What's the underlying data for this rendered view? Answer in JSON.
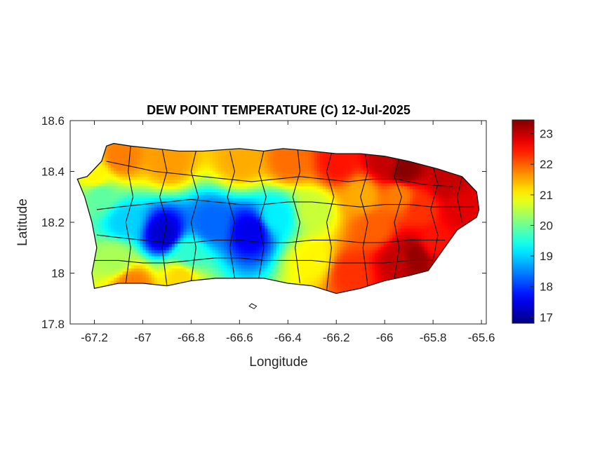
{
  "figure": {
    "title": "DEW POINT TEMPERATURE (C) 12-Jul-2025",
    "xlabel": "Longitude",
    "ylabel": "Latitude"
  },
  "chart_data": {
    "type": "heatmap",
    "title": "DEW POINT TEMPERATURE (C) 12-Jul-2025",
    "xlabel": "Longitude",
    "ylabel": "Latitude",
    "xlim": [
      -67.3,
      -65.58
    ],
    "ylim": [
      17.8,
      18.6
    ],
    "xticks": [
      -67.2,
      -67,
      -66.8,
      -66.6,
      -66.4,
      -66.2,
      -66,
      -65.8,
      -65.6
    ],
    "xtick_labels": [
      "-67.2",
      "-67",
      "-66.8",
      "-66.6",
      "-66.4",
      "-66.2",
      "-66",
      "-65.8",
      "-65.6"
    ],
    "yticks": [
      17.8,
      18,
      18.2,
      18.4,
      18.6
    ],
    "ytick_labels": [
      "17.8",
      "18",
      "18.2",
      "18.4",
      "18.6"
    ],
    "colorbar": {
      "colormap": "jet",
      "limits": [
        16.8,
        23.45
      ],
      "ticks": [
        17,
        18,
        19,
        20,
        21,
        22,
        23
      ],
      "tick_labels": [
        "17",
        "18",
        "19",
        "20",
        "21",
        "22",
        "23"
      ]
    },
    "colormap_colors": [
      "#00008f",
      "#0000ff",
      "#00ffff",
      "#ffff00",
      "#ff0000",
      "#800000"
    ],
    "grid": false,
    "field_anchors": [
      {
        "lon": -66.92,
        "lat": 18.15,
        "value": 17.3
      },
      {
        "lon": -66.56,
        "lat": 18.16,
        "value": 17.5
      },
      {
        "lon": -66.72,
        "lat": 18.19,
        "value": 18.3
      },
      {
        "lon": -67.08,
        "lat": 18.2,
        "value": 19.0
      },
      {
        "lon": -66.45,
        "lat": 18.22,
        "value": 19.2
      },
      {
        "lon": -66.82,
        "lat": 18.07,
        "value": 19.6
      },
      {
        "lon": -67.18,
        "lat": 18.3,
        "value": 19.9
      },
      {
        "lon": -67.12,
        "lat": 18.05,
        "value": 20.4
      },
      {
        "lon": -66.3,
        "lat": 18.24,
        "value": 20.6
      },
      {
        "lon": -66.3,
        "lat": 18.05,
        "value": 21.0
      },
      {
        "lon": -66.9,
        "lat": 18.44,
        "value": 21.6
      },
      {
        "lon": -67.1,
        "lat": 18.45,
        "value": 21.8
      },
      {
        "lon": -66.6,
        "lat": 18.44,
        "value": 21.5
      },
      {
        "lon": -66.4,
        "lat": 18.44,
        "value": 21.9
      },
      {
        "lon": -67.2,
        "lat": 18.38,
        "value": 21.0
      },
      {
        "lon": -66.1,
        "lat": 18.3,
        "value": 21.5
      },
      {
        "lon": -66.05,
        "lat": 18.17,
        "value": 22.0
      },
      {
        "lon": -66.15,
        "lat": 18.0,
        "value": 22.3
      },
      {
        "lon": -66.2,
        "lat": 18.43,
        "value": 22.5
      },
      {
        "lon": -66.0,
        "lat": 18.43,
        "value": 23.0
      },
      {
        "lon": -65.93,
        "lat": 18.4,
        "value": 23.4
      },
      {
        "lon": -65.75,
        "lat": 18.35,
        "value": 23.0
      },
      {
        "lon": -65.85,
        "lat": 18.25,
        "value": 22.3
      },
      {
        "lon": -65.7,
        "lat": 18.25,
        "value": 22.8
      },
      {
        "lon": -65.95,
        "lat": 18.05,
        "value": 23.0
      },
      {
        "lon": -65.88,
        "lat": 18.06,
        "value": 23.3
      },
      {
        "lon": -65.8,
        "lat": 18.12,
        "value": 22.5
      },
      {
        "lon": -65.95,
        "lat": 18.3,
        "value": 21.8
      },
      {
        "lon": -67.05,
        "lat": 17.95,
        "value": 21.8
      },
      {
        "lon": -66.85,
        "lat": 17.98,
        "value": 21.2
      }
    ],
    "boundary_outline": [
      [
        -67.27,
        18.37
      ],
      [
        -67.23,
        18.38
      ],
      [
        -67.17,
        18.44
      ],
      [
        -67.15,
        18.5
      ],
      [
        -67.12,
        18.51
      ],
      [
        -67.05,
        18.5
      ],
      [
        -66.95,
        18.49
      ],
      [
        -66.85,
        18.48
      ],
      [
        -66.75,
        18.48
      ],
      [
        -66.6,
        18.49
      ],
      [
        -66.5,
        18.48
      ],
      [
        -66.42,
        18.49
      ],
      [
        -66.3,
        18.48
      ],
      [
        -66.2,
        18.47
      ],
      [
        -66.1,
        18.47
      ],
      [
        -66.0,
        18.46
      ],
      [
        -65.9,
        18.44
      ],
      [
        -65.78,
        18.41
      ],
      [
        -65.68,
        18.38
      ],
      [
        -65.62,
        18.32
      ],
      [
        -65.61,
        18.25
      ],
      [
        -65.62,
        18.22
      ],
      [
        -65.7,
        18.17
      ],
      [
        -65.76,
        18.09
      ],
      [
        -65.82,
        18.01
      ],
      [
        -65.9,
        17.99
      ],
      [
        -66.0,
        17.97
      ],
      [
        -66.1,
        17.94
      ],
      [
        -66.2,
        17.92
      ],
      [
        -66.3,
        17.95
      ],
      [
        -66.4,
        17.96
      ],
      [
        -66.5,
        17.98
      ],
      [
        -66.6,
        17.98
      ],
      [
        -66.7,
        17.98
      ],
      [
        -66.8,
        17.97
      ],
      [
        -66.9,
        17.95
      ],
      [
        -67.0,
        17.96
      ],
      [
        -67.1,
        17.96
      ],
      [
        -67.2,
        17.94
      ],
      [
        -67.21,
        18.0
      ],
      [
        -67.19,
        18.1
      ],
      [
        -67.21,
        18.2
      ],
      [
        -67.24,
        18.3
      ]
    ],
    "islands": [
      [
        [
          -66.55,
          17.88
        ],
        [
          -66.53,
          17.87
        ],
        [
          -66.54,
          17.86
        ],
        [
          -66.56,
          17.87
        ]
      ]
    ],
    "municipal_boundaries": [
      [
        [
          -67.15,
          18.44
        ],
        [
          -67.05,
          18.42
        ],
        [
          -66.95,
          18.4
        ],
        [
          -66.85,
          18.39
        ],
        [
          -66.75,
          18.38
        ],
        [
          -66.65,
          18.37
        ],
        [
          -66.55,
          18.36
        ],
        [
          -66.45,
          18.37
        ],
        [
          -66.35,
          18.38
        ],
        [
          -66.25,
          18.37
        ],
        [
          -66.15,
          18.36
        ],
        [
          -66.05,
          18.37
        ],
        [
          -65.95,
          18.37
        ],
        [
          -65.85,
          18.35
        ],
        [
          -65.72,
          18.34
        ]
      ],
      [
        [
          -67.19,
          18.25
        ],
        [
          -67.1,
          18.26
        ],
        [
          -67.0,
          18.27
        ],
        [
          -66.9,
          18.28
        ],
        [
          -66.8,
          18.29
        ],
        [
          -66.7,
          18.28
        ],
        [
          -66.6,
          18.27
        ],
        [
          -66.5,
          18.27
        ],
        [
          -66.4,
          18.28
        ],
        [
          -66.3,
          18.28
        ],
        [
          -66.2,
          18.27
        ],
        [
          -66.1,
          18.26
        ],
        [
          -66.0,
          18.27
        ],
        [
          -65.9,
          18.27
        ],
        [
          -65.8,
          18.26
        ],
        [
          -65.63,
          18.26
        ]
      ],
      [
        [
          -67.19,
          18.15
        ],
        [
          -67.1,
          18.14
        ],
        [
          -67.0,
          18.13
        ],
        [
          -66.9,
          18.12
        ],
        [
          -66.8,
          18.12
        ],
        [
          -66.7,
          18.13
        ],
        [
          -66.6,
          18.13
        ],
        [
          -66.5,
          18.12
        ],
        [
          -66.4,
          18.12
        ],
        [
          -66.3,
          18.13
        ],
        [
          -66.2,
          18.13
        ],
        [
          -66.1,
          18.12
        ],
        [
          -66.0,
          18.12
        ],
        [
          -65.9,
          18.13
        ],
        [
          -65.75,
          18.13
        ]
      ],
      [
        [
          -67.2,
          18.05
        ],
        [
          -67.1,
          18.05
        ],
        [
          -67.0,
          18.04
        ],
        [
          -66.9,
          18.04
        ],
        [
          -66.8,
          18.05
        ],
        [
          -66.7,
          18.06
        ],
        [
          -66.6,
          18.06
        ],
        [
          -66.5,
          18.05
        ],
        [
          -66.4,
          18.05
        ],
        [
          -66.3,
          18.05
        ],
        [
          -66.2,
          18.04
        ],
        [
          -66.1,
          18.04
        ],
        [
          -66.0,
          18.04
        ],
        [
          -65.9,
          18.05
        ],
        [
          -65.8,
          18.05
        ]
      ],
      [
        [
          -67.05,
          18.5
        ],
        [
          -67.06,
          18.4
        ],
        [
          -67.04,
          18.3
        ],
        [
          -67.07,
          18.2
        ],
        [
          -67.05,
          18.1
        ],
        [
          -67.07,
          17.96
        ]
      ],
      [
        [
          -66.92,
          18.49
        ],
        [
          -66.9,
          18.4
        ],
        [
          -66.93,
          18.3
        ],
        [
          -66.9,
          18.2
        ],
        [
          -66.92,
          18.1
        ],
        [
          -66.9,
          17.95
        ]
      ],
      [
        [
          -66.78,
          18.48
        ],
        [
          -66.8,
          18.4
        ],
        [
          -66.77,
          18.3
        ],
        [
          -66.8,
          18.2
        ],
        [
          -66.78,
          18.1
        ],
        [
          -66.8,
          17.97
        ]
      ],
      [
        [
          -66.64,
          18.48
        ],
        [
          -66.62,
          18.4
        ],
        [
          -66.65,
          18.3
        ],
        [
          -66.62,
          18.2
        ],
        [
          -66.64,
          18.1
        ],
        [
          -66.62,
          17.98
        ]
      ],
      [
        [
          -66.5,
          18.48
        ],
        [
          -66.52,
          18.4
        ],
        [
          -66.49,
          18.3
        ],
        [
          -66.52,
          18.2
        ],
        [
          -66.5,
          18.1
        ],
        [
          -66.52,
          17.98
        ]
      ],
      [
        [
          -66.36,
          18.49
        ],
        [
          -66.35,
          18.4
        ],
        [
          -66.38,
          18.3
        ],
        [
          -66.35,
          18.2
        ],
        [
          -66.37,
          18.1
        ],
        [
          -66.35,
          17.96
        ]
      ],
      [
        [
          -66.22,
          18.47
        ],
        [
          -66.24,
          18.4
        ],
        [
          -66.21,
          18.3
        ],
        [
          -66.24,
          18.2
        ],
        [
          -66.22,
          18.1
        ],
        [
          -66.24,
          17.93
        ]
      ],
      [
        [
          -66.08,
          18.47
        ],
        [
          -66.07,
          18.4
        ],
        [
          -66.1,
          18.3
        ],
        [
          -66.07,
          18.2
        ],
        [
          -66.09,
          18.1
        ],
        [
          -66.07,
          17.95
        ]
      ],
      [
        [
          -65.94,
          18.45
        ],
        [
          -65.96,
          18.38
        ],
        [
          -65.93,
          18.3
        ],
        [
          -65.96,
          18.2
        ],
        [
          -65.94,
          18.1
        ],
        [
          -65.96,
          17.98
        ]
      ],
      [
        [
          -65.8,
          18.42
        ],
        [
          -65.78,
          18.35
        ],
        [
          -65.81,
          18.25
        ],
        [
          -65.78,
          18.15
        ],
        [
          -65.8,
          18.05
        ]
      ],
      [
        [
          -65.68,
          18.38
        ],
        [
          -65.7,
          18.3
        ],
        [
          -65.68,
          18.2
        ]
      ]
    ]
  }
}
